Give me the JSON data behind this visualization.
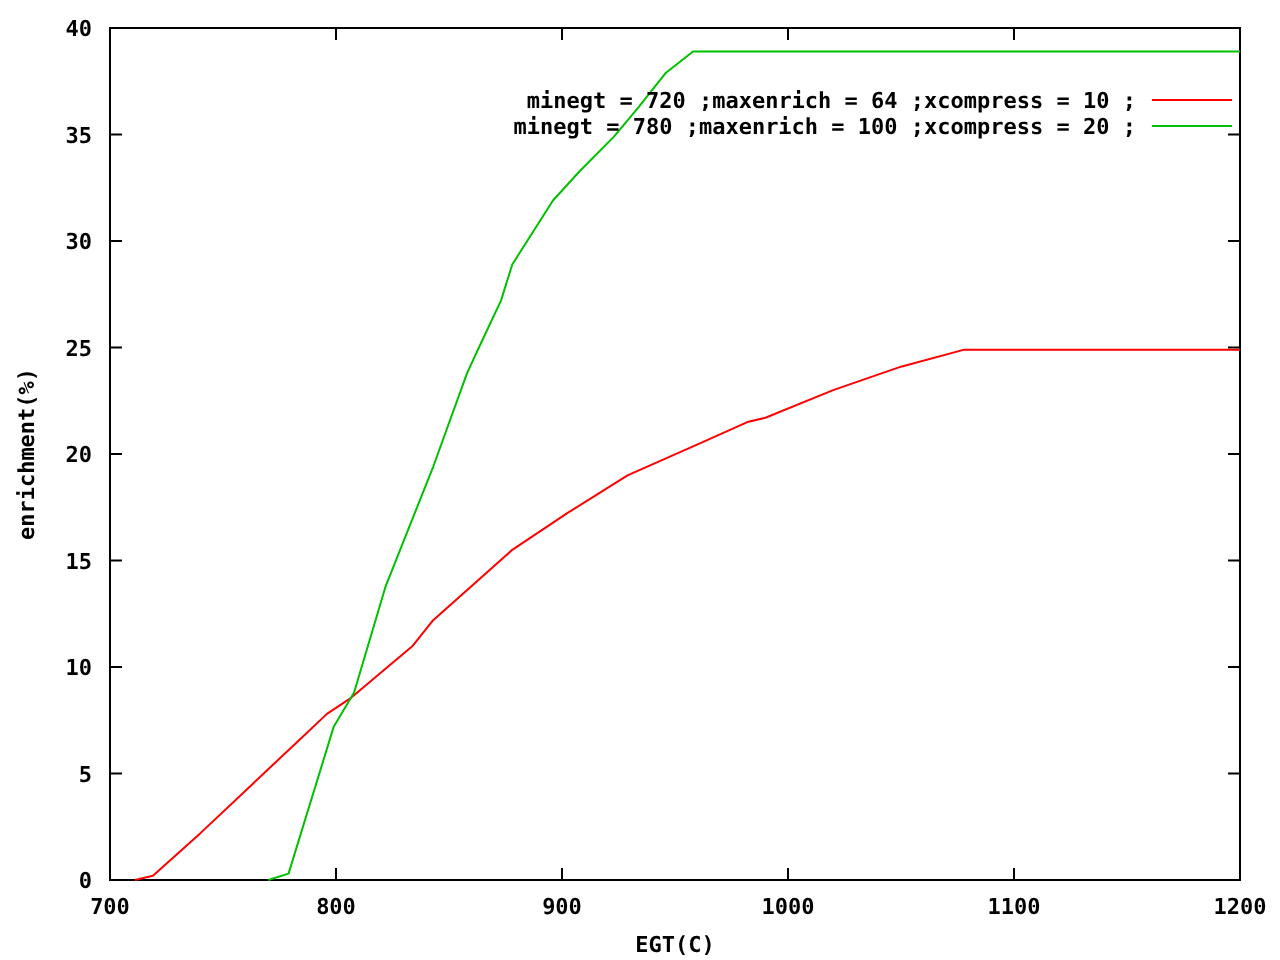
{
  "chart_data": {
    "type": "line",
    "xlabel": "EGT(C)",
    "ylabel": "enrichment(%)",
    "xlim": [
      700,
      1200
    ],
    "ylim": [
      0,
      40
    ],
    "xticks": [
      700,
      800,
      900,
      1000,
      1100,
      1200
    ],
    "yticks": [
      0,
      5,
      10,
      15,
      20,
      25,
      30,
      35,
      40
    ],
    "grid": false,
    "legend": "top right",
    "marker": "none",
    "line_style": "solid",
    "series": [
      {
        "name": "minegt = 720 ;maxenrich = 64 ;xcompress = 10 ;",
        "color": "#ff0000",
        "x": [
          711,
          719,
          740,
          763,
          784,
          796,
          806,
          834,
          843,
          878,
          902,
          917,
          929,
          961,
          982,
          990,
          1020,
          1050,
          1078,
          1200
        ],
        "values": [
          0,
          0.2,
          2.2,
          4.5,
          6.6,
          7.8,
          8.5,
          11,
          12.2,
          15.5,
          17.2,
          18.2,
          19,
          20.5,
          21.5,
          21.7,
          23,
          24.1,
          24.9,
          24.9
        ]
      },
      {
        "name": "minegt = 780 ;maxenrich = 100 ;xcompress = 20 ;",
        "color": "#00c000",
        "x": [
          770,
          779,
          799,
          808,
          822,
          843,
          858,
          865,
          873,
          878,
          896,
          908,
          923,
          934,
          946,
          958,
          1200
        ],
        "values": [
          0,
          0.3,
          7.2,
          8.8,
          13.8,
          19.4,
          23.8,
          25.4,
          27.2,
          28.9,
          31.9,
          33.3,
          34.9,
          36.3,
          37.9,
          38.9,
          38.9
        ]
      }
    ]
  }
}
